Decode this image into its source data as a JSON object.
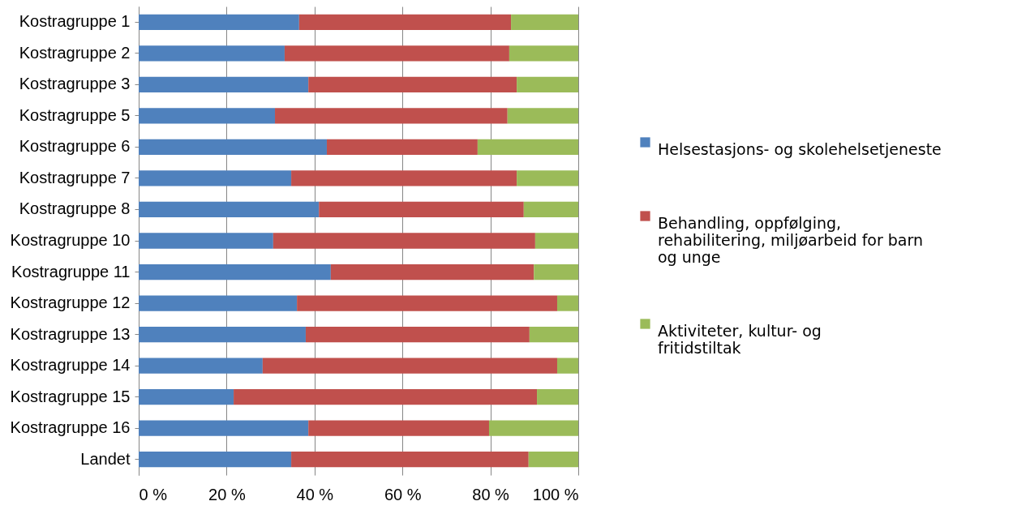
{
  "chart_data": {
    "type": "bar",
    "orientation": "horizontal",
    "stacked": true,
    "categories": [
      "Kostragruppe 1",
      "Kostragruppe 2",
      "Kostragruppe 3",
      "Kostragruppe 5",
      "Kostragruppe 6",
      "Kostragruppe 7",
      "Kostragruppe 8",
      "Kostragruppe 10",
      "Kostragruppe 11",
      "Kostragruppe 12",
      "Kostragruppe 13",
      "Kostragruppe 14",
      "Kostragruppe 15",
      "Kostragruppe 16",
      "Landet"
    ],
    "series": [
      {
        "name": "Helsestasjons- og skolehelsetjeneste",
        "color": "#4f81bd",
        "values": [
          36.5,
          33.2,
          38.6,
          31.0,
          42.8,
          34.7,
          41.0,
          30.6,
          43.7,
          36.0,
          38.0,
          28.2,
          21.6,
          38.6,
          34.7
        ]
      },
      {
        "name": "Behandling, oppfølging, rehabilitering, miljøarbeid for barn og unge",
        "color": "#c0504d",
        "values": [
          48.2,
          51.1,
          47.4,
          52.9,
          34.3,
          51.3,
          46.6,
          59.6,
          46.2,
          59.2,
          50.9,
          67.0,
          69.0,
          41.1,
          54.0
        ]
      },
      {
        "name": "Aktiviteter, kultur- og fritidstiltak",
        "color": "#9bbb59",
        "values": [
          15.3,
          15.7,
          14.0,
          16.1,
          22.9,
          14.0,
          12.4,
          9.8,
          10.1,
          4.8,
          11.1,
          4.8,
          9.4,
          20.3,
          11.3
        ]
      }
    ],
    "xlim": [
      0,
      100
    ],
    "xticks": [
      {
        "value": 0,
        "label": "0 %"
      },
      {
        "value": 20,
        "label": "20 %"
      },
      {
        "value": 40,
        "label": "40 %"
      },
      {
        "value": 60,
        "label": "60 %"
      },
      {
        "value": 80,
        "label": "80 %"
      },
      {
        "value": 100,
        "label": "100 %"
      }
    ],
    "grid": "x",
    "legend": "right"
  }
}
